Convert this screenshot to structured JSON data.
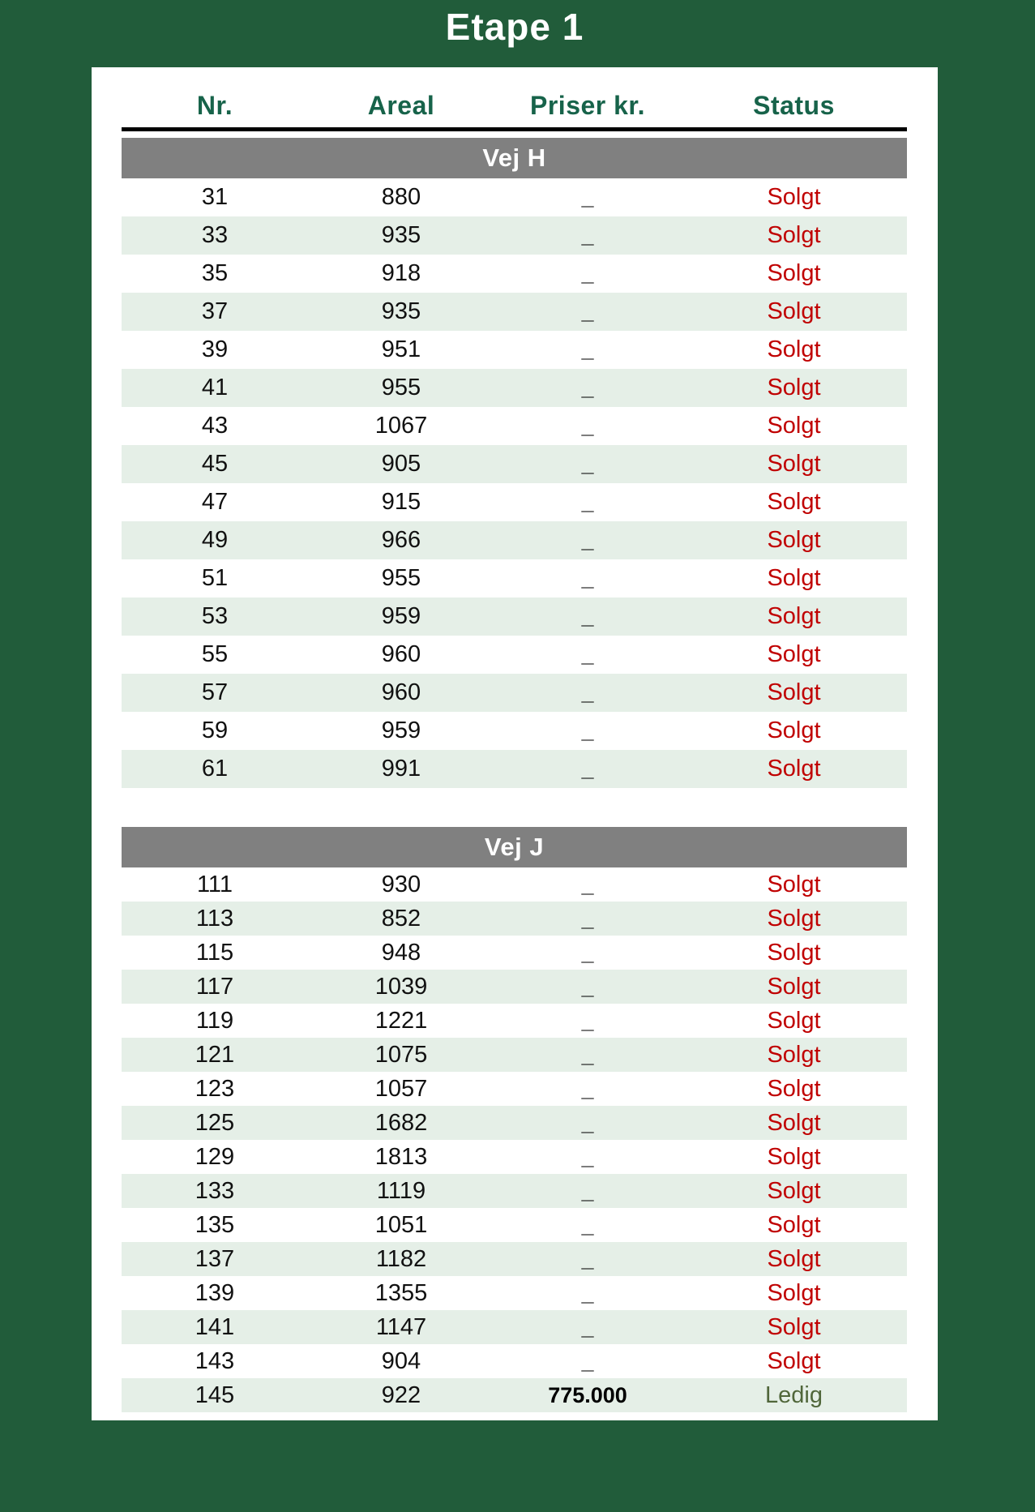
{
  "title": "Etape 1",
  "table": {
    "headers": [
      "Nr.",
      "Areal",
      "Priser kr.",
      "Status"
    ],
    "sections": [
      {
        "name": "Vej H",
        "rows": [
          {
            "nr": "31",
            "areal": "880",
            "pris": "_",
            "status": "Solgt"
          },
          {
            "nr": "33",
            "areal": "935",
            "pris": "_",
            "status": "Solgt"
          },
          {
            "nr": "35",
            "areal": "918",
            "pris": "_",
            "status": "Solgt"
          },
          {
            "nr": "37",
            "areal": "935",
            "pris": "_",
            "status": "Solgt"
          },
          {
            "nr": "39",
            "areal": "951",
            "pris": "_",
            "status": "Solgt"
          },
          {
            "nr": "41",
            "areal": "955",
            "pris": "_",
            "status": "Solgt"
          },
          {
            "nr": "43",
            "areal": "1067",
            "pris": "_",
            "status": "Solgt"
          },
          {
            "nr": "45",
            "areal": "905",
            "pris": "_",
            "status": "Solgt"
          },
          {
            "nr": "47",
            "areal": "915",
            "pris": "_",
            "status": "Solgt"
          },
          {
            "nr": "49",
            "areal": "966",
            "pris": "_",
            "status": "Solgt"
          },
          {
            "nr": "51",
            "areal": "955",
            "pris": "_",
            "status": "Solgt"
          },
          {
            "nr": "53",
            "areal": "959",
            "pris": "_",
            "status": "Solgt"
          },
          {
            "nr": "55",
            "areal": "960",
            "pris": "_",
            "status": "Solgt"
          },
          {
            "nr": "57",
            "areal": "960",
            "pris": "_",
            "status": "Solgt"
          },
          {
            "nr": "59",
            "areal": "959",
            "pris": "_",
            "status": "Solgt"
          },
          {
            "nr": "61",
            "areal": "991",
            "pris": "_",
            "status": "Solgt"
          }
        ]
      },
      {
        "name": "Vej J",
        "rows": [
          {
            "nr": "111",
            "areal": "930",
            "pris": "_",
            "status": "Solgt"
          },
          {
            "nr": "113",
            "areal": "852",
            "pris": "_",
            "status": "Solgt"
          },
          {
            "nr": "115",
            "areal": "948",
            "pris": "_",
            "status": "Solgt"
          },
          {
            "nr": "117",
            "areal": "1039",
            "pris": "_",
            "status": "Solgt"
          },
          {
            "nr": "119",
            "areal": "1221",
            "pris": "_",
            "status": "Solgt"
          },
          {
            "nr": "121",
            "areal": "1075",
            "pris": "_",
            "status": "Solgt"
          },
          {
            "nr": "123",
            "areal": "1057",
            "pris": "_",
            "status": "Solgt"
          },
          {
            "nr": "125",
            "areal": "1682",
            "pris": "_",
            "status": "Solgt"
          },
          {
            "nr": "129",
            "areal": "1813",
            "pris": "_",
            "status": "Solgt"
          },
          {
            "nr": "133",
            "areal": "1119",
            "pris": "_",
            "status": "Solgt"
          },
          {
            "nr": "135",
            "areal": "1051",
            "pris": "_",
            "status": "Solgt"
          },
          {
            "nr": "137",
            "areal": "1182",
            "pris": "_",
            "status": "Solgt"
          },
          {
            "nr": "139",
            "areal": "1355",
            "pris": "_",
            "status": "Solgt"
          },
          {
            "nr": "141",
            "areal": "1147",
            "pris": "_",
            "status": "Solgt"
          },
          {
            "nr": "143",
            "areal": "904",
            "pris": "_",
            "status": "Solgt"
          },
          {
            "nr": "145",
            "areal": "922",
            "pris": "775.000",
            "status": "Ledig"
          }
        ]
      }
    ]
  },
  "status_labels": {
    "sold": "Solgt",
    "available": "Ledig"
  },
  "colors": {
    "background": "#215c3a",
    "header_text": "#17634a",
    "section_banner": "#808080",
    "row_stripe": "#e5efe7",
    "status_sold": "#c00000",
    "status_available": "#50663a"
  }
}
